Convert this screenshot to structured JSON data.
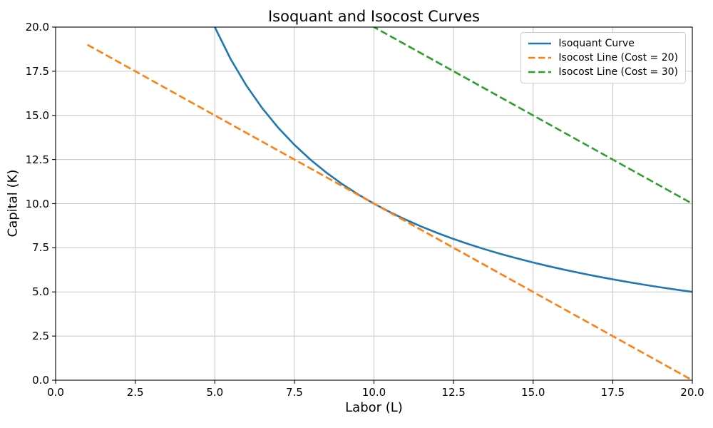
{
  "figure": {
    "background": "#ffffff",
    "text_color": "#000000"
  },
  "chart_data": {
    "type": "line",
    "title": "Isoquant and Isocost Curves",
    "xlabel": "Labor (L)",
    "ylabel": "Capital (K)",
    "xlim": [
      0,
      20
    ],
    "ylim": [
      0,
      20
    ],
    "xticks": [
      0,
      2.5,
      5,
      7.5,
      10,
      12.5,
      15,
      17.5,
      20
    ],
    "xtick_labels": [
      "0.0",
      "2.5",
      "5.0",
      "7.5",
      "10.0",
      "12.5",
      "15.0",
      "17.5",
      "20.0"
    ],
    "yticks": [
      0,
      2.5,
      5,
      7.5,
      10,
      12.5,
      15,
      17.5,
      20
    ],
    "ytick_labels": [
      "0.0",
      "2.5",
      "5.0",
      "7.5",
      "10.0",
      "12.5",
      "15.0",
      "17.5",
      "20.0"
    ],
    "grid": true,
    "grid_color": "#c6c6c6",
    "axes_edge_color": "#000000",
    "legend_position": "upper right",
    "series": [
      {
        "name": "Isoquant Curve",
        "slug": "isoquant-curve",
        "color": "#1f77b4",
        "line_style": "solid",
        "equation": "K = 100 / L",
        "points": [
          [
            5,
            20
          ],
          [
            5.5,
            18.182
          ],
          [
            6,
            16.667
          ],
          [
            6.5,
            15.385
          ],
          [
            7,
            14.286
          ],
          [
            7.5,
            13.333
          ],
          [
            8,
            12.5
          ],
          [
            8.5,
            11.765
          ],
          [
            9,
            11.111
          ],
          [
            9.5,
            10.526
          ],
          [
            10,
            10
          ],
          [
            10.5,
            9.524
          ],
          [
            11,
            9.091
          ],
          [
            11.5,
            8.696
          ],
          [
            12,
            8.333
          ],
          [
            12.5,
            8
          ],
          [
            13,
            7.692
          ],
          [
            13.5,
            7.407
          ],
          [
            14,
            7.143
          ],
          [
            14.5,
            6.897
          ],
          [
            15,
            6.667
          ],
          [
            15.5,
            6.452
          ],
          [
            16,
            6.25
          ],
          [
            16.5,
            6.061
          ],
          [
            17,
            5.882
          ],
          [
            17.5,
            5.714
          ],
          [
            18,
            5.556
          ],
          [
            18.5,
            5.405
          ],
          [
            19,
            5.263
          ],
          [
            19.5,
            5.128
          ],
          [
            20,
            5
          ]
        ]
      },
      {
        "name": "Isocost Line (Cost = 20)",
        "slug": "isocost-line-cost-20",
        "color": "#ff7f0e",
        "line_style": "dashed",
        "equation": "K = 20 - L",
        "points": [
          [
            1,
            19
          ],
          [
            20,
            0
          ]
        ]
      },
      {
        "name": "Isocost Line (Cost = 30)",
        "slug": "isocost-line-cost-30",
        "color": "#2ca02c",
        "line_style": "dashed",
        "equation": "K = 30 - L",
        "points": [
          [
            1,
            29
          ],
          [
            20,
            10
          ]
        ]
      }
    ]
  }
}
